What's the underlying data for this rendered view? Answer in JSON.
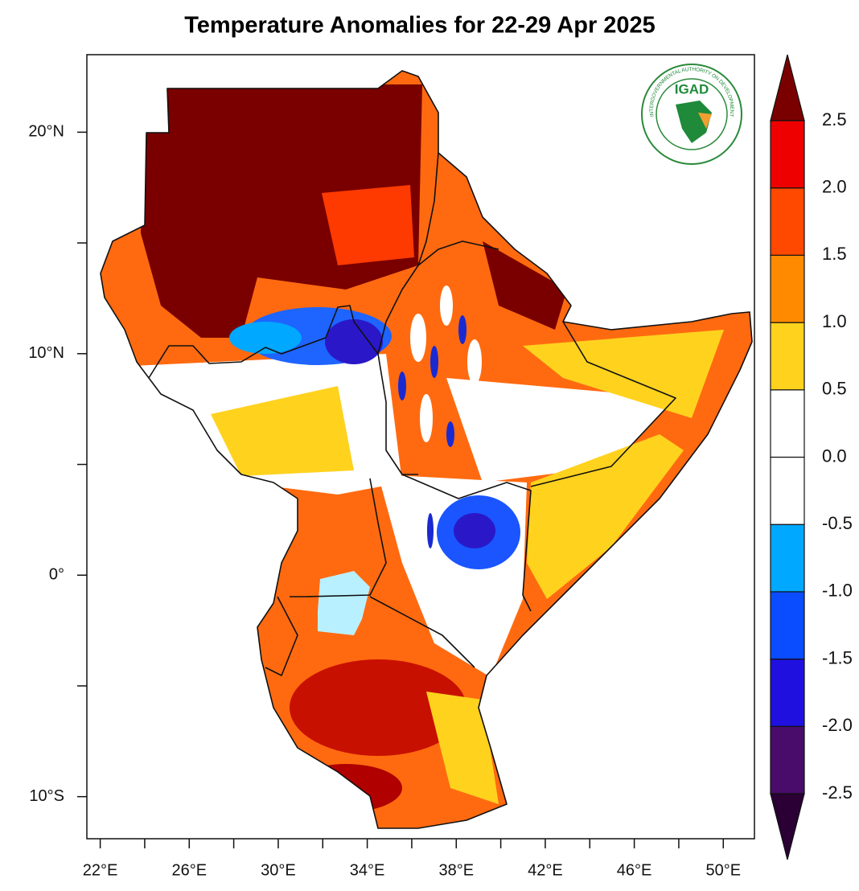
{
  "map": {
    "type": "filled-contour-map",
    "title": "Temperature Anomalies for 22-29 Apr 2025",
    "xlim": [
      21.4,
      51.4
    ],
    "ylim": [
      -11.9,
      23.5
    ],
    "xticks": [
      {
        "value": 22,
        "label": "22°E"
      },
      {
        "value": 26,
        "label": "26°E"
      },
      {
        "value": 30,
        "label": "30°E"
      },
      {
        "value": 34,
        "label": "34°E"
      },
      {
        "value": 38,
        "label": "38°E"
      },
      {
        "value": 42,
        "label": "42°E"
      },
      {
        "value": 46,
        "label": "46°E"
      },
      {
        "value": 50,
        "label": "50°E"
      }
    ],
    "xminor": [
      24,
      28,
      32,
      36,
      40,
      44,
      48
    ],
    "yticks": [
      {
        "value": 20,
        "label": "20°N"
      },
      {
        "value": 10,
        "label": "10°N"
      },
      {
        "value": 0,
        "label": "0°"
      },
      {
        "value": -10,
        "label": "10°S"
      }
    ],
    "yminor": [
      15,
      5,
      -5
    ],
    "colorbar": {
      "levels": [
        -2.5,
        {
          "value": -2,
          "label": "-2.0"
        },
        -1.5,
        {
          "value": -1,
          "label": "-1.0"
        },
        -0.5,
        {
          "value": 0,
          "label": "0.0"
        },
        0.5,
        {
          "value": 1,
          "label": "1.0"
        },
        1.5,
        {
          "value": 2,
          "label": "2.0"
        },
        2.5
      ],
      "colors": [
        "#2a0035",
        "#4a0c6a",
        "#2010e0",
        "#0a4cff",
        "#00a8ff",
        "#ffffff",
        "#ffffff",
        "#ffd21e",
        "#ff8a00",
        "#ff4800",
        "#ee0000",
        "#7a0000"
      ]
    },
    "logo": {
      "name": "IGAD",
      "arc_text": "INTERGOVERNMENTAL AUTHORITY ON DEVELOPMENT"
    }
  }
}
